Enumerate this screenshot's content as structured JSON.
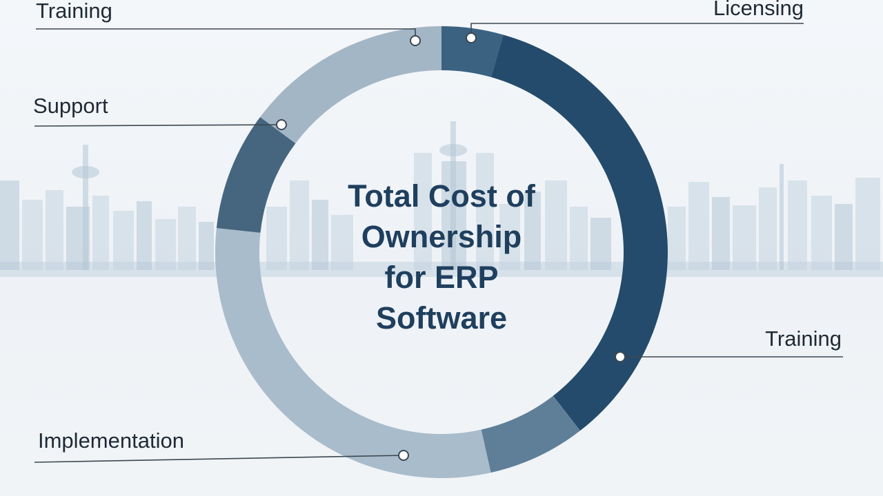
{
  "chart_data": {
    "type": "donut",
    "title_lines": [
      "Total Cost of",
      "Ownership",
      "for ERP",
      "Software"
    ],
    "segments": [
      {
        "label": "Licensing",
        "value": 4.4,
        "color": "#3b6280"
      },
      {
        "label": "Training",
        "value": 35.1,
        "color": "#244b6b"
      },
      {
        "label": "",
        "value": 7.0,
        "color": "#5f7f98"
      },
      {
        "label": "Implementation",
        "value": 30.2,
        "color": "#a9bccb"
      },
      {
        "label": "Support",
        "value": 8.5,
        "color": "#46667f"
      },
      {
        "label": "Training",
        "value": 14.8,
        "color": "#a3b6c5"
      }
    ]
  },
  "colors": {
    "background": "#eef2f6",
    "title": "#1f3f5e",
    "leader": "#3c4752"
  }
}
